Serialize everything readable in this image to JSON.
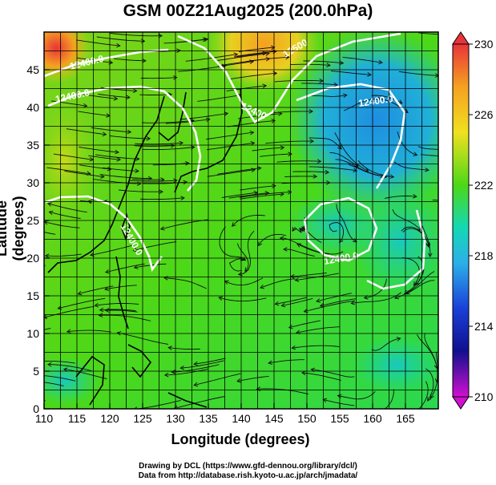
{
  "title": "GSM 00Z21Aug2025 (200.0hPa)",
  "map": {
    "xlabel": "Longitude (degrees)",
    "ylabel": "Latitude  (degrees)",
    "lon_range": [
      110,
      170
    ],
    "lat_range": [
      0,
      50
    ],
    "lon_ticks": [
      "110",
      "115",
      "120",
      "125",
      "130",
      "135",
      "140",
      "145",
      "150",
      "155",
      "160",
      "165"
    ],
    "lat_ticks": [
      "0",
      "5",
      "10",
      "15",
      "20",
      "25",
      "30",
      "35",
      "40",
      "45"
    ],
    "grid": true,
    "contour_labels": [
      "12400.0",
      "12400.0",
      "12400.0",
      "12500",
      "12400",
      "12400.0",
      "12400.0"
    ],
    "color_field": "temperature",
    "streamlines": true
  },
  "colorbar": {
    "min": 210,
    "max": 230,
    "tick_labels": [
      "230",
      "226",
      "222",
      "218",
      "214",
      "210"
    ],
    "colors": [
      "#e8343a",
      "#f5a020",
      "#f0e020",
      "#4cd818",
      "#14d8b4",
      "#2cb0e8",
      "#1a40d8",
      "#10108e",
      "#d010d0"
    ]
  },
  "credits": {
    "line1": "Drawing by DCL (https://www.gfd-dennou.org/library/dcl/)",
    "line2": "Data from http://database.rish.kyoto-u.ac.jp/arch/jmadata/"
  }
}
